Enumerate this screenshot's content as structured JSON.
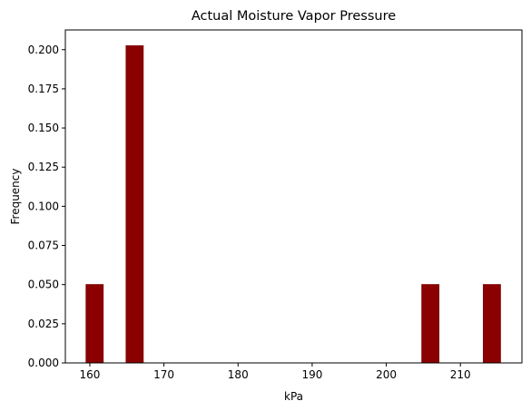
{
  "chart_data": {
    "type": "bar",
    "title": "Actual Moisture Vapor Pressure",
    "xlabel": "kPa",
    "ylabel": "Frequency",
    "bars": [
      {
        "x_start": 159.5,
        "x_end": 161.8,
        "value": 0.05
      },
      {
        "x_start": 164.9,
        "x_end": 167.2,
        "value": 0.2025
      },
      {
        "x_start": 204.8,
        "x_end": 207.1,
        "value": 0.05
      },
      {
        "x_start": 213.1,
        "x_end": 215.4,
        "value": 0.05
      }
    ],
    "xlim": [
      156.7,
      218.3
    ],
    "ylim": [
      0,
      0.2126
    ],
    "x_ticks": [
      160,
      170,
      180,
      190,
      200,
      210
    ],
    "x_tick_labels": [
      "160",
      "170",
      "180",
      "190",
      "200",
      "210"
    ],
    "y_ticks": [
      0,
      0.025,
      0.05,
      0.075,
      0.1,
      0.125,
      0.15,
      0.175,
      0.2
    ],
    "y_tick_labels": [
      "0.000",
      "0.025",
      "0.050",
      "0.075",
      "0.100",
      "0.125",
      "0.150",
      "0.175",
      "0.200"
    ],
    "grid": false,
    "colors": {
      "bar_fill": "#8b0000",
      "bar_edge": "#800000"
    }
  }
}
